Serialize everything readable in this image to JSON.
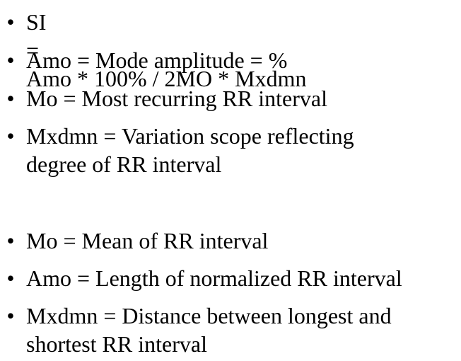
{
  "bullet": "•",
  "group_a": {
    "si_formula": {
      "label": "SI",
      "equals": "=",
      "expression": "Amo * 100% /  2MO * Mxdmn"
    },
    "items": [
      "Amo = Mode amplitude = %",
      "Mo = Most recurring RR interval"
    ],
    "mxdmn": {
      "line1": "Mxdmn = Variation scope reflecting",
      "line2": "degree of RR interval"
    }
  },
  "group_b": {
    "items": [
      "Mo = Mean of RR interval",
      "Amo = Length of normalized RR interval"
    ],
    "mxdmn": {
      "line1": "Mxdmn = Distance between longest and",
      "line2": "shortest RR interval"
    }
  }
}
